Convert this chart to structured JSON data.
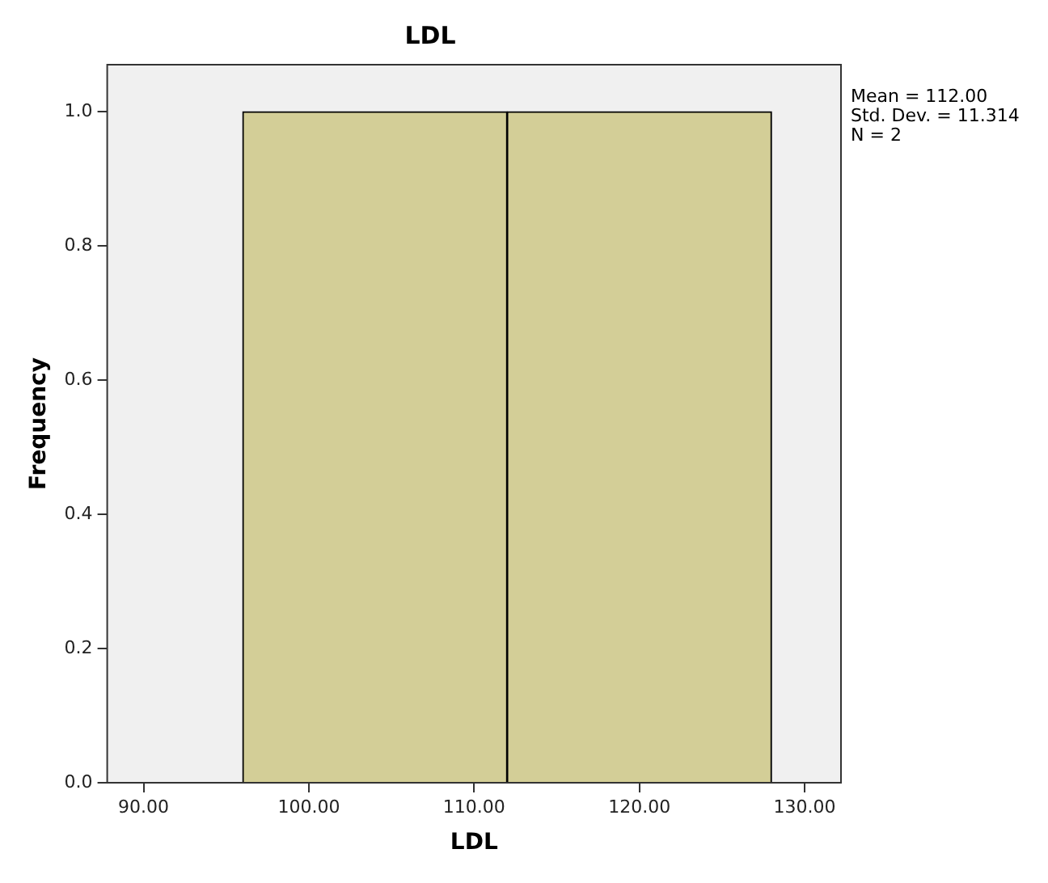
{
  "chart_data": {
    "type": "histogram",
    "title": "LDL",
    "xlabel": "LDL",
    "ylabel": "Frequency",
    "bins": [
      96,
      112,
      128
    ],
    "values": [
      1,
      1
    ],
    "color": "#d3ce97",
    "xlim": [
      87.8,
      132.2
    ],
    "xticks": [
      {
        "value": 90,
        "label": "90.00"
      },
      {
        "value": 100,
        "label": "100.00"
      },
      {
        "value": 110,
        "label": "110.00"
      },
      {
        "value": 120,
        "label": "120.00"
      },
      {
        "value": 130,
        "label": "130.00"
      }
    ],
    "ylim": [
      0,
      1.07
    ],
    "yticks": [
      {
        "value": 0,
        "label": "0.0"
      },
      {
        "value": 0.2,
        "label": "0.2"
      },
      {
        "value": 0.4,
        "label": "0.4"
      },
      {
        "value": 0.6,
        "label": "0.6"
      },
      {
        "value": 0.8,
        "label": "0.8"
      },
      {
        "value": 1,
        "label": "1.0"
      }
    ],
    "legend": false,
    "annotations": [
      "Mean = 112.00",
      "Std. Dev. = 11.314",
      "N = 2"
    ]
  }
}
